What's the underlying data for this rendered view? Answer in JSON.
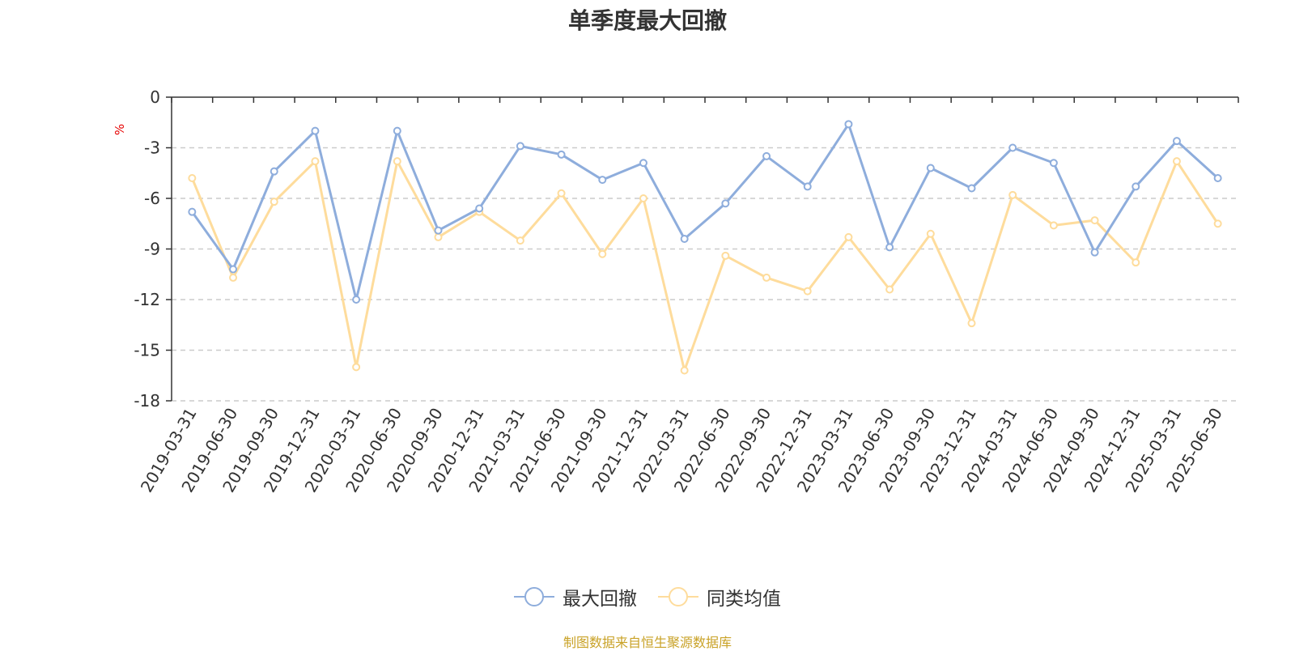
{
  "chart_data": {
    "type": "line",
    "title": "单季度最大回撤",
    "ylabel": "%",
    "ylim": [
      -18,
      0
    ],
    "yticks": [
      0,
      -3,
      -6,
      -9,
      -12,
      -15,
      -18
    ],
    "grid": true,
    "legend_position": "bottom",
    "categories": [
      "2019-03-31",
      "2019-06-30",
      "2019-09-30",
      "2019-12-31",
      "2020-03-31",
      "2020-06-30",
      "2020-09-30",
      "2020-12-31",
      "2021-03-31",
      "2021-06-30",
      "2021-09-30",
      "2021-12-31",
      "2022-03-31",
      "2022-06-30",
      "2022-09-30",
      "2022-12-31",
      "2023-03-31",
      "2023-06-30",
      "2023-09-30",
      "2023-12-31",
      "2024-03-31",
      "2024-06-30",
      "2024-09-30",
      "2024-12-31",
      "2025-03-31",
      "2025-06-30"
    ],
    "series": [
      {
        "name": "最大回撤",
        "color": "#8eaddc",
        "values": [
          -6.8,
          -10.2,
          -4.4,
          -2.0,
          -12.0,
          -2.0,
          -7.9,
          -6.6,
          -2.9,
          -3.4,
          -4.9,
          -3.9,
          -8.4,
          -6.3,
          -3.5,
          -5.3,
          -1.6,
          -8.9,
          -4.2,
          -5.4,
          -3.0,
          -3.9,
          -9.2,
          -5.3,
          -2.6,
          -4.8
        ]
      },
      {
        "name": "同类均值",
        "color": "#fedc9c",
        "values": [
          -4.8,
          -10.7,
          -6.2,
          -3.8,
          -16.0,
          -3.8,
          -8.3,
          -6.8,
          -8.5,
          -5.7,
          -9.3,
          -6.0,
          -16.2,
          -9.4,
          -10.7,
          -11.5,
          -8.3,
          -11.4,
          -8.1,
          -13.4,
          -5.8,
          -7.6,
          -7.3,
          -9.8,
          -3.8,
          -7.5
        ]
      }
    ]
  },
  "footer": "制图数据来自恒生聚源数据库"
}
